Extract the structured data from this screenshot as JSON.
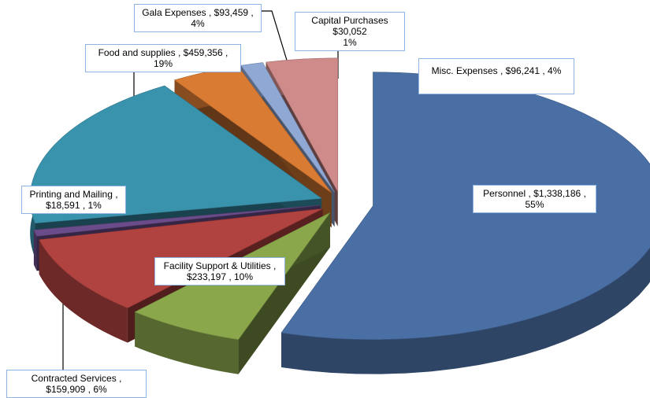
{
  "chart_data": {
    "type": "pie",
    "title": "",
    "slices": [
      {
        "category": "Personnel",
        "amount": "$1,338,186",
        "percent": "55%",
        "value": 1338186,
        "color": "#4a6fa5"
      },
      {
        "category": "Contracted Services",
        "amount": "$159,909",
        "percent": "6%",
        "value": 159909,
        "color": "#8aa74b"
      },
      {
        "category": "Facility Support & Utilities",
        "amount": "$233,197",
        "percent": "10%",
        "value": 233197,
        "color": "#b04240"
      },
      {
        "category": "Printing and Mailing",
        "amount": "$18,591",
        "percent": "1%",
        "value": 18591,
        "color": "#6b4c8a"
      },
      {
        "category": "Food and supplies",
        "amount": "$459,356",
        "percent": "19%",
        "value": 459356,
        "color": "#3a93ad"
      },
      {
        "category": "Gala Expenses",
        "amount": "$93,459",
        "percent": "4%",
        "value": 93459,
        "color": "#d97b33"
      },
      {
        "category": "Capital Purchases",
        "amount": "$30,052",
        "percent": "1%",
        "value": 30052,
        "color": "#8fa8d4"
      },
      {
        "category": "Misc. Expenses",
        "amount": "$96,241",
        "percent": "4%",
        "value": 96241,
        "color": "#cf8a8a"
      }
    ],
    "labels": {
      "gala": [
        "Gala Expenses , $93,459 ,",
        "4%"
      ],
      "capital": [
        "Capital Purchases",
        "$30,052",
        "1%"
      ],
      "misc": [
        "Misc. Expenses , $96,241 , 4%"
      ],
      "food": [
        "Food and supplies , $459,356 ,",
        "19%"
      ],
      "printing": [
        "Printing and Mailing ,",
        "$18,591 , 1%"
      ],
      "personnel": [
        "Personnel , $1,338,186 ,",
        "55%"
      ],
      "facility": [
        "Facility Support & Utilities ,",
        "$233,197 , 10%"
      ],
      "contracted": [
        "Contracted Services ,",
        "$159,909 , 6%"
      ]
    }
  }
}
